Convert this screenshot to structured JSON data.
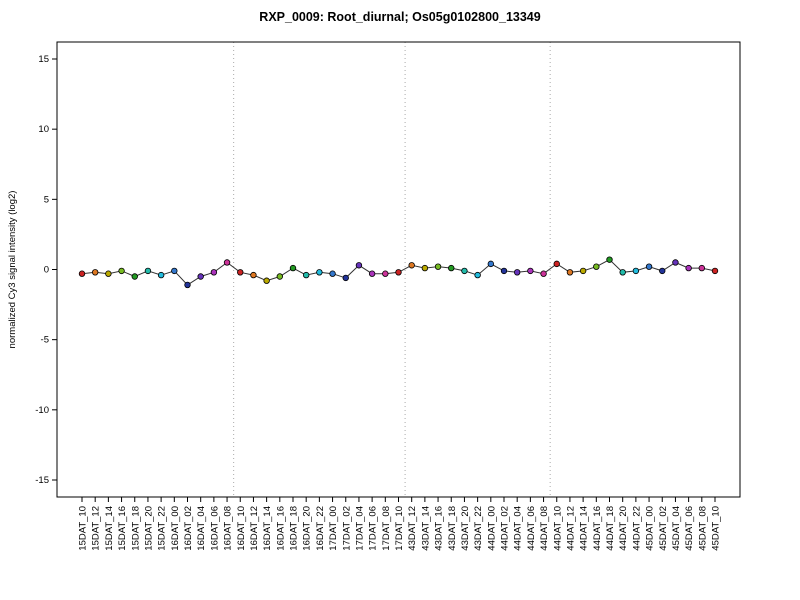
{
  "title": "RXP_0009: Root_diurnal; Os05g0102800_13349",
  "chart_data": {
    "type": "line",
    "title": "RXP_0009: Root_diurnal; Os05g0102800_13349",
    "xlabel": "",
    "ylabel": "normalized Cy3 signal intensity (log2)",
    "ylim": [
      -15,
      15
    ],
    "yticks": [
      -15,
      -10,
      -5,
      0,
      5,
      10,
      15
    ],
    "grid": "three dotted vertical day-separator lines",
    "legend": "none",
    "categories": [
      "15DAT_10",
      "15DAT_12",
      "15DAT_14",
      "15DAT_16",
      "15DAT_18",
      "15DAT_20",
      "15DAT_22",
      "16DAT_00",
      "16DAT_02",
      "16DAT_04",
      "16DAT_06",
      "16DAT_08",
      "16DAT_10",
      "16DAT_12",
      "16DAT_14",
      "16DAT_16",
      "16DAT_18",
      "16DAT_20",
      "16DAT_22",
      "17DAT_00",
      "17DAT_02",
      "17DAT_04",
      "17DAT_06",
      "17DAT_08",
      "17DAT_10",
      "43DAT_12",
      "43DAT_14",
      "43DAT_16",
      "43DAT_18",
      "43DAT_20",
      "43DAT_22",
      "44DAT_00",
      "44DAT_02",
      "44DAT_04",
      "44DAT_06",
      "44DAT_08",
      "44DAT_10",
      "44DAT_12",
      "44DAT_14",
      "44DAT_16",
      "44DAT_18",
      "44DAT_20",
      "44DAT_22",
      "45DAT_00",
      "45DAT_02",
      "45DAT_04",
      "45DAT_06",
      "45DAT_08",
      "45DAT_10"
    ],
    "values": [
      -0.3,
      -0.2,
      -0.3,
      -0.1,
      -0.5,
      -0.1,
      -0.4,
      -0.1,
      -1.1,
      -0.5,
      -0.2,
      0.5,
      -0.2,
      -0.4,
      -0.8,
      -0.5,
      0.1,
      -0.4,
      -0.2,
      -0.3,
      -0.6,
      0.3,
      -0.3,
      -0.3,
      -0.2,
      0.3,
      0.1,
      0.2,
      0.1,
      -0.1,
      -0.4,
      0.4,
      -0.1,
      -0.2,
      -0.1,
      -0.3,
      0.4,
      -0.2,
      -0.1,
      0.2,
      0.7,
      -0.2,
      -0.1,
      0.2,
      -0.1,
      0.5,
      0.1,
      0.1,
      -0.1
    ],
    "day_separator_after_index": [
      11,
      24,
      35
    ],
    "point_color_by_hour": {
      "00": "#3377cc",
      "02": "#223399",
      "04": "#6633bb",
      "06": "#aa33bb",
      "08": "#cc3399",
      "10": "#cc2222",
      "12": "#dd7722",
      "14": "#bbaa00",
      "16": "#77bb22",
      "18": "#229922",
      "20": "#22bbaa",
      "22": "#22bbdd"
    },
    "line_color": "#333333",
    "point_border_color": "#000000",
    "separator_color": "#aaaaaa",
    "axis_color": "#000000"
  }
}
